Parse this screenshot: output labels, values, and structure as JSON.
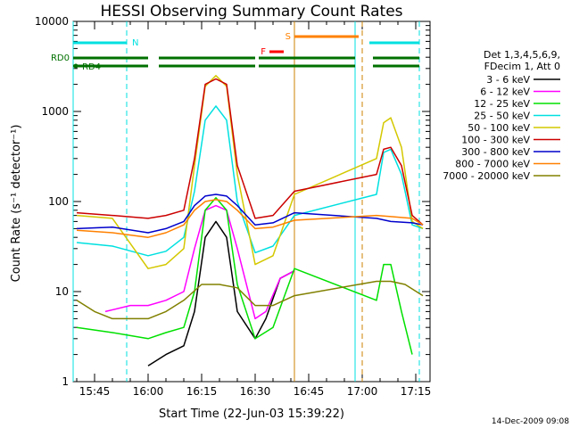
{
  "chart_data": {
    "type": "line",
    "title": "HESSI Observing Summary Count Rates",
    "xlabel": "Start Time (22-Jun-03 15:39:22)",
    "ylabel": "Count Rate (s⁻¹ detector⁻¹)",
    "xlim": [
      "15:39",
      "17:19"
    ],
    "ylim": [
      1,
      10000
    ],
    "yscale": "log",
    "xticks": [
      "15:45",
      "16:00",
      "16:15",
      "16:30",
      "16:45",
      "17:00",
      "17:15"
    ],
    "yticks": [
      "1",
      "10",
      "100",
      "1000",
      "10000"
    ],
    "legend_header": [
      "Det 1,3,4,5,6,9,",
      "FDecim 1, Att 0"
    ],
    "legend_placement": "right",
    "series": [
      {
        "name": "3 - 6 keV",
        "color": "#000000",
        "x": [
          "16:00",
          "16:05",
          "16:10",
          "16:13",
          "16:16",
          "16:19",
          "16:22",
          "16:25",
          "16:30",
          "16:33",
          "16:37",
          "16:41"
        ],
        "y": [
          1.5,
          2,
          2.5,
          6,
          40,
          60,
          40,
          6,
          3,
          5,
          14,
          17
        ]
      },
      {
        "name": "6 - 12 keV",
        "color": "#ff00ff",
        "x": [
          "15:48",
          "15:55",
          "16:00",
          "16:05",
          "16:10",
          "16:13",
          "16:16",
          "16:19",
          "16:22",
          "16:25",
          "16:30",
          "16:33",
          "16:37",
          "16:41"
        ],
        "y": [
          6,
          7,
          7,
          8,
          10,
          30,
          80,
          90,
          80,
          30,
          5,
          6,
          14,
          17
        ]
      },
      {
        "name": "12 - 25 keV",
        "color": "#00e000",
        "x": [
          "15:40",
          "15:50",
          "16:00",
          "16:05",
          "16:10",
          "16:13",
          "16:16",
          "16:19",
          "16:22",
          "16:25",
          "16:30",
          "16:35",
          "16:41",
          "17:04",
          "17:06",
          "17:08",
          "17:11",
          "17:14"
        ],
        "y": [
          4,
          3.5,
          3,
          3.5,
          4,
          10,
          80,
          110,
          80,
          12,
          3,
          4,
          18,
          8,
          20,
          20,
          6,
          2
        ]
      },
      {
        "name": "25 - 50 keV",
        "color": "#00e0e0",
        "x": [
          "15:40",
          "15:50",
          "16:00",
          "16:05",
          "16:10",
          "16:13",
          "16:16",
          "16:19",
          "16:22",
          "16:25",
          "16:30",
          "16:35",
          "16:41",
          "17:04",
          "17:06",
          "17:08",
          "17:11",
          "17:14",
          "17:17"
        ],
        "y": [
          35,
          32,
          25,
          28,
          40,
          130,
          800,
          1150,
          800,
          100,
          27,
          32,
          70,
          120,
          350,
          380,
          200,
          55,
          50
        ]
      },
      {
        "name": "50 - 100 keV",
        "color": "#d4c800",
        "x": [
          "15:40",
          "15:50",
          "16:00",
          "16:05",
          "16:10",
          "16:13",
          "16:16",
          "16:19",
          "16:22",
          "16:25",
          "16:30",
          "16:35",
          "16:41",
          "17:04",
          "17:06",
          "17:08",
          "17:11",
          "17:14",
          "17:17"
        ],
        "y": [
          70,
          65,
          18,
          20,
          30,
          250,
          1900,
          2500,
          1900,
          200,
          20,
          25,
          120,
          300,
          750,
          850,
          400,
          60,
          50
        ]
      },
      {
        "name": "100 - 300 keV",
        "color": "#cc0000",
        "x": [
          "15:40",
          "15:50",
          "16:00",
          "16:05",
          "16:10",
          "16:13",
          "16:16",
          "16:19",
          "16:22",
          "16:25",
          "16:30",
          "16:35",
          "16:41",
          "17:04",
          "17:06",
          "17:08",
          "17:11",
          "17:14",
          "17:17"
        ],
        "y": [
          75,
          70,
          65,
          70,
          80,
          300,
          2000,
          2300,
          2000,
          250,
          65,
          70,
          130,
          200,
          380,
          400,
          250,
          70,
          55
        ]
      },
      {
        "name": "300 - 800 keV",
        "color": "#0000cc",
        "x": [
          "15:40",
          "15:50",
          "16:00",
          "16:05",
          "16:10",
          "16:13",
          "16:16",
          "16:19",
          "16:22",
          "16:25",
          "16:30",
          "16:35",
          "16:41",
          "17:04",
          "17:08",
          "17:14",
          "17:17"
        ],
        "y": [
          50,
          52,
          45,
          50,
          60,
          90,
          115,
          120,
          115,
          90,
          55,
          58,
          75,
          65,
          60,
          58,
          55
        ]
      },
      {
        "name": "800 - 7000 keV",
        "color": "#ff8000",
        "x": [
          "15:40",
          "15:50",
          "16:00",
          "16:05",
          "16:10",
          "16:13",
          "16:16",
          "16:19",
          "16:22",
          "16:25",
          "16:30",
          "16:35",
          "16:41",
          "17:04",
          "17:08",
          "17:14",
          "17:17"
        ],
        "y": [
          48,
          45,
          40,
          45,
          55,
          80,
          100,
          105,
          100,
          80,
          50,
          52,
          62,
          70,
          68,
          65,
          55
        ]
      },
      {
        "name": "7000 - 20000 keV",
        "color": "#808000",
        "x": [
          "15:40",
          "15:45",
          "15:50",
          "15:55",
          "16:00",
          "16:05",
          "16:10",
          "16:15",
          "16:20",
          "16:25",
          "16:30",
          "16:35",
          "16:41",
          "17:04",
          "17:08",
          "17:12",
          "17:17"
        ],
        "y": [
          8,
          6,
          5,
          5,
          5,
          6,
          8,
          12,
          12,
          11,
          7,
          7,
          9,
          13,
          13,
          12,
          9
        ]
      }
    ],
    "annotations": {
      "rd0": {
        "label": "RD0",
        "color": "#007000",
        "segments": [
          [
            "15:39",
            "16:00"
          ],
          [
            "16:03",
            "16:30"
          ],
          [
            "16:31",
            "16:58"
          ],
          [
            "17:03",
            "17:16"
          ]
        ]
      },
      "rd4": {
        "label": "RD4",
        "color": "#007000"
      },
      "n": {
        "label": "N",
        "color": "#00e0e0",
        "segments": [
          [
            "15:39",
            "15:54"
          ],
          [
            "17:02",
            "17:16"
          ]
        ]
      },
      "f": {
        "label": "F",
        "color": "#ff0000",
        "segments": [
          [
            "16:34",
            "16:38"
          ]
        ]
      },
      "s": {
        "label": "S",
        "color": "#ff8000",
        "segments": [
          [
            "16:41",
            "16:59"
          ]
        ]
      },
      "vlines": [
        {
          "x": "15:39",
          "color": "#00e0e0",
          "style": "solid"
        },
        {
          "x": "15:54",
          "color": "#00e0e0",
          "style": "dashed"
        },
        {
          "x": "16:41",
          "color": "#cc8000",
          "style": "solid"
        },
        {
          "x": "16:58",
          "color": "#00e0e0",
          "style": "solid"
        },
        {
          "x": "17:00",
          "color": "#cc8000",
          "style": "dashed"
        },
        {
          "x": "17:16",
          "color": "#00e0e0",
          "style": "dashed"
        }
      ]
    },
    "footer": "14-Dec-2009 09:08"
  }
}
